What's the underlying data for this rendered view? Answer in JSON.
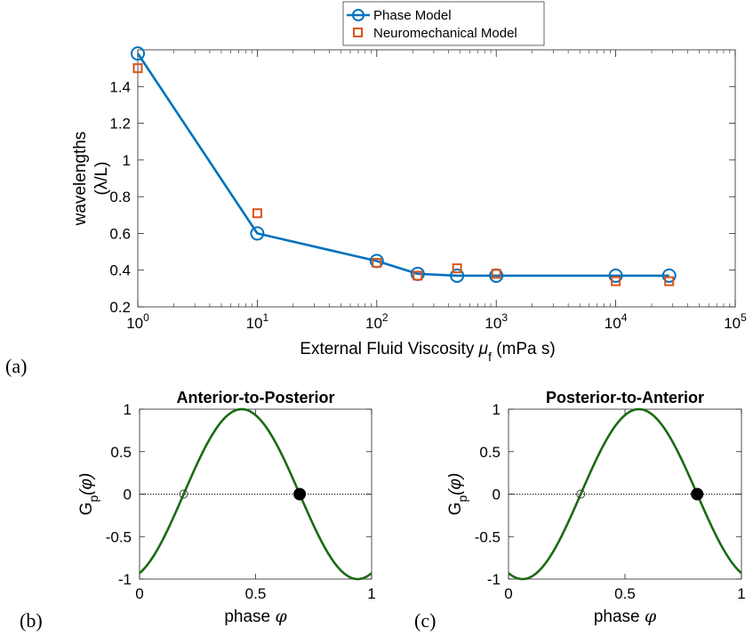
{
  "colors": {
    "phase": "#0072bd",
    "neuro": "#d95319",
    "gp_curve": "#1a6b12",
    "axis": "#262626",
    "dots": "#000000"
  },
  "panel_labels": {
    "a": "(a)",
    "b": "(b)",
    "c": "(c)"
  },
  "chart_data": [
    {
      "type": "line",
      "xscale": "log",
      "xlabel": "External Fluid Viscosity μ_f (mPa s)",
      "xlabel_main": "External Fluid Viscosity ",
      "xlabel_sym": "μ",
      "xlabel_sub": "f",
      "xlabel_units": " (mPa s)",
      "ylabel_line1": "wavelengths",
      "ylabel_line2": "(λ/L)",
      "xlim": [
        1,
        100000
      ],
      "ylim": [
        0.2,
        1.6
      ],
      "xticks": [
        1,
        10,
        100,
        1000,
        10000,
        100000
      ],
      "xtick_labels": [
        {
          "base": "10",
          "exp": "0"
        },
        {
          "base": "10",
          "exp": "1"
        },
        {
          "base": "10",
          "exp": "2"
        },
        {
          "base": "10",
          "exp": "3"
        },
        {
          "base": "10",
          "exp": "4"
        },
        {
          "base": "10",
          "exp": "5"
        }
      ],
      "yticks": [
        0.2,
        0.4,
        0.6,
        0.8,
        1,
        1.2,
        1.4
      ],
      "ytick_labels": [
        "0.2",
        "0.4",
        "0.6",
        "0.8",
        "1",
        "1.2",
        "1.4"
      ],
      "grid": false,
      "legend_position": "top-center",
      "series": [
        {
          "name": "Phase Model",
          "marker": "circle",
          "line": true,
          "x": [
            1,
            10,
            100,
            220,
            470,
            1000,
            10000,
            28000
          ],
          "y": [
            1.58,
            0.6,
            0.45,
            0.38,
            0.37,
            0.37,
            0.37,
            0.37
          ]
        },
        {
          "name": "Neuromechanical Model",
          "marker": "square",
          "line": false,
          "x": [
            1,
            10,
            100,
            220,
            470,
            1000,
            10000,
            28000
          ],
          "y": [
            1.5,
            0.71,
            0.44,
            0.37,
            0.41,
            0.38,
            0.34,
            0.34
          ]
        }
      ]
    },
    {
      "type": "line",
      "title": "Anterior-to-Posterior",
      "xlabel": "phase φ",
      "xlabel_main": "phase ",
      "xlabel_sym": "φ",
      "ylabel_main": "G",
      "ylabel_sub": "p",
      "ylabel_paren": "(φ)",
      "xlim": [
        0,
        1
      ],
      "ylim": [
        -1,
        1
      ],
      "xticks": [
        0,
        0.5,
        1
      ],
      "xtick_labels": [
        "0",
        "0.5",
        "1"
      ],
      "yticks": [
        -1,
        -0.5,
        0,
        0.5,
        1
      ],
      "ytick_labels": [
        "-1",
        "-0.5",
        "0",
        "0.5",
        "1"
      ],
      "function": "G(φ) = cos(2π(φ − 0.44))",
      "curve_peak_phase": 0.44,
      "zero_line": true,
      "zero_crossings": [
        {
          "phase": 0.19,
          "marker": "open-circle"
        },
        {
          "phase": 0.69,
          "marker": "filled-circle"
        }
      ]
    },
    {
      "type": "line",
      "title": "Posterior-to-Anterior",
      "xlabel": "phase φ",
      "xlabel_main": "phase ",
      "xlabel_sym": "φ",
      "ylabel_main": "G",
      "ylabel_sub": "p",
      "ylabel_paren": "(φ)",
      "xlim": [
        0,
        1
      ],
      "ylim": [
        -1,
        1
      ],
      "xticks": [
        0,
        0.5,
        1
      ],
      "xtick_labels": [
        "0",
        "0.5",
        "1"
      ],
      "yticks": [
        -1,
        -0.5,
        0,
        0.5,
        1
      ],
      "ytick_labels": [
        "-1",
        "-0.5",
        "0",
        "0.5",
        "1"
      ],
      "function": "G(φ) = cos(2π(φ − 0.56))",
      "curve_peak_phase": 0.56,
      "zero_line": true,
      "zero_crossings": [
        {
          "phase": 0.31,
          "marker": "open-circle"
        },
        {
          "phase": 0.81,
          "marker": "filled-circle"
        }
      ]
    }
  ]
}
